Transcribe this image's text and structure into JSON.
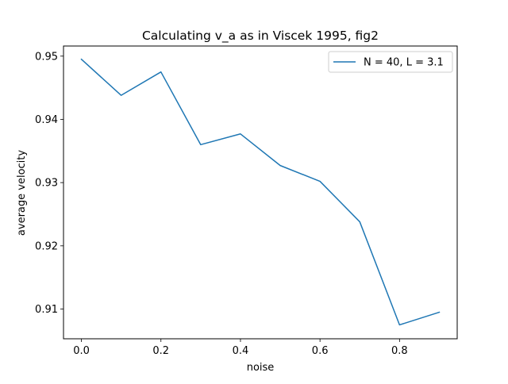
{
  "chart_data": {
    "type": "line",
    "title": "Calculating v_a as in Viscek 1995, fig2",
    "xlabel": "noise",
    "ylabel": "average velocity",
    "xlim": [
      -0.045,
      0.945
    ],
    "ylim": [
      0.9053,
      0.9516
    ],
    "xticks": [
      0.0,
      0.2,
      0.4,
      0.6,
      0.8
    ],
    "xtick_labels": [
      "0.0",
      "0.2",
      "0.4",
      "0.6",
      "0.8"
    ],
    "yticks": [
      0.91,
      0.92,
      0.93,
      0.94,
      0.95
    ],
    "ytick_labels": [
      "0.91",
      "0.92",
      "0.93",
      "0.94",
      "0.95"
    ],
    "grid": false,
    "legend_position": "top-right",
    "series": [
      {
        "name": "N = 40, L = 3.1",
        "color": "#1f77b4",
        "x": [
          0.0,
          0.1,
          0.2,
          0.3,
          0.4,
          0.5,
          0.6,
          0.7,
          0.8,
          0.9
        ],
        "y": [
          0.9495,
          0.9438,
          0.9475,
          0.936,
          0.9377,
          0.9327,
          0.9302,
          0.9238,
          0.9075,
          0.9095
        ]
      }
    ]
  }
}
